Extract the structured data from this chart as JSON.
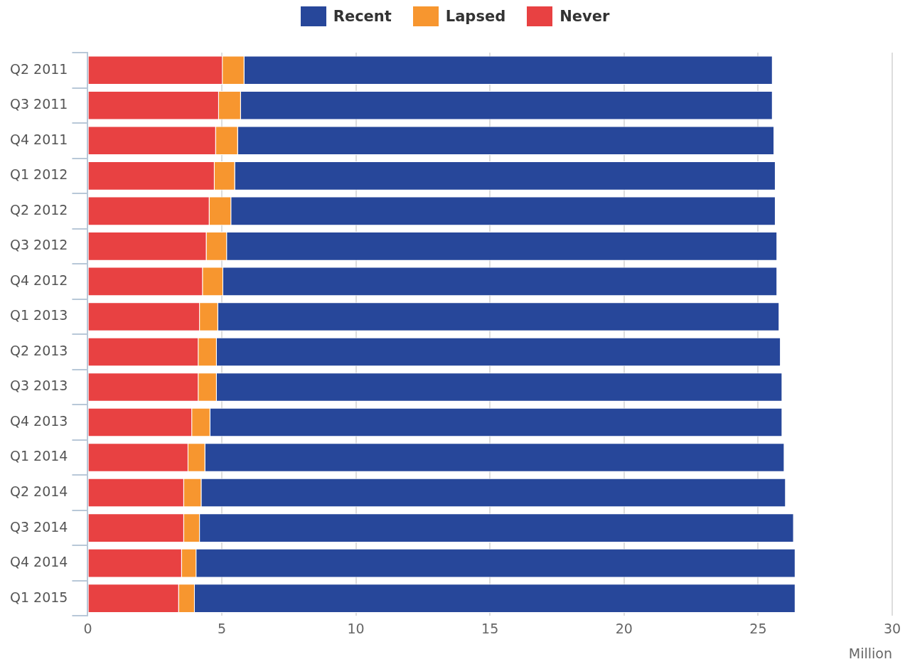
{
  "chart_data": {
    "type": "bar",
    "orientation": "horizontal",
    "stacked": true,
    "categories": [
      "Q2 2011",
      "Q3 2011",
      "Q4 2011",
      "Q1 2012",
      "Q2 2012",
      "Q3 2012",
      "Q4 2012",
      "Q1 2013",
      "Q2 2013",
      "Q3 2013",
      "Q4 2013",
      "Q1 2014",
      "Q2 2014",
      "Q3 2014",
      "Q4 2014",
      "Q1 2015"
    ],
    "series": [
      {
        "name": "Never",
        "color": "#e84142",
        "values": [
          5.03,
          4.89,
          4.78,
          4.73,
          4.54,
          4.43,
          4.29,
          4.18,
          4.13,
          4.13,
          3.89,
          3.75,
          3.59,
          3.59,
          3.51,
          3.4
        ]
      },
      {
        "name": "Lapsed",
        "color": "#f7962f",
        "values": [
          0.81,
          0.82,
          0.82,
          0.76,
          0.81,
          0.76,
          0.76,
          0.68,
          0.68,
          0.68,
          0.68,
          0.63,
          0.65,
          0.59,
          0.54,
          0.59
        ]
      },
      {
        "name": "Recent",
        "color": "#27479a",
        "values": [
          19.7,
          19.83,
          20.0,
          20.16,
          20.3,
          20.52,
          20.66,
          20.93,
          21.03,
          21.09,
          21.33,
          21.6,
          21.79,
          22.15,
          22.34,
          22.4
        ]
      }
    ],
    "xlim": [
      0,
      30
    ],
    "xticks": [
      0,
      5,
      10,
      15,
      20,
      25,
      30
    ],
    "xlabel": "Million",
    "grid": "x",
    "legend": "top"
  }
}
